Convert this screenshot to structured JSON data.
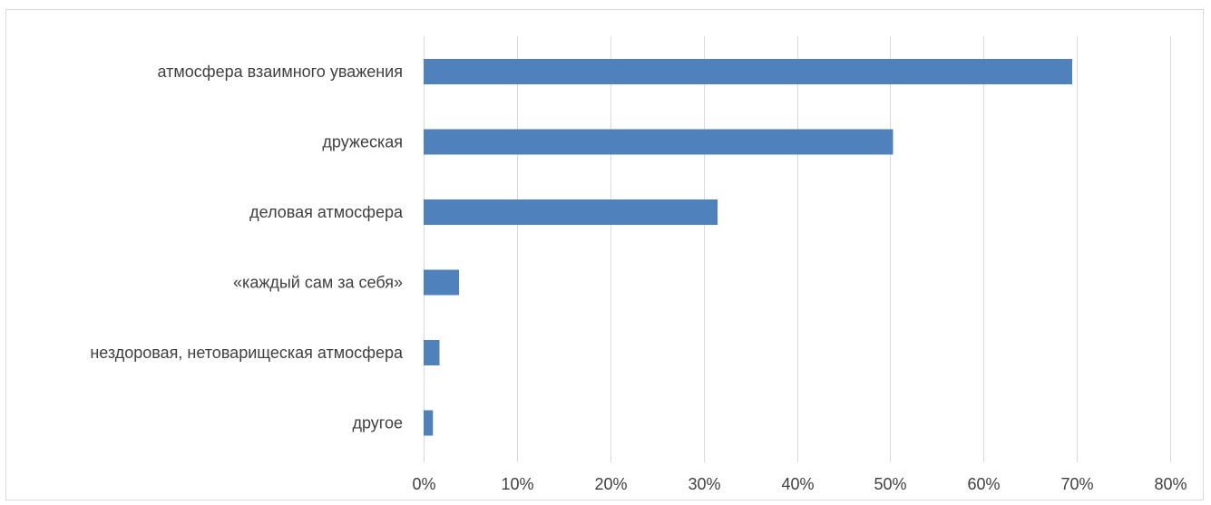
{
  "chart_data": {
    "type": "bar",
    "orientation": "horizontal",
    "categories": [
      "атмосфера взаимного уважения",
      "дружеская",
      "деловая атмосфера",
      "«каждый сам за себя»",
      "нездоровая, нетоварищеская атмосфера",
      "другое"
    ],
    "values": [
      69.5,
      50.3,
      31.5,
      3.8,
      1.7,
      1.0
    ],
    "value_unit": "%",
    "xlim": [
      0,
      80
    ],
    "x_ticks": [
      "0%",
      "10%",
      "20%",
      "30%",
      "40%",
      "50%",
      "60%",
      "70%",
      "80%"
    ],
    "grid": "vertical",
    "legend": "none",
    "title": "",
    "xlabel": "",
    "ylabel": "",
    "colors": {
      "bar": "#4f81bd",
      "grid": "#d9d9d9",
      "text": "#404040",
      "border": "#d9d9d9"
    }
  }
}
